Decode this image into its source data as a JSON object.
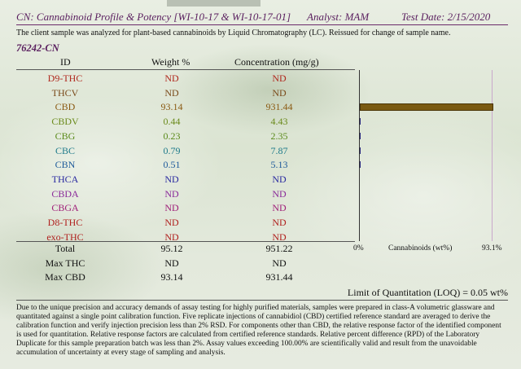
{
  "header": {
    "title": "CN: Cannabinoid Profile & Potency [WI-10-17 & WI-10-17-01]",
    "analyst": "Analyst: MAM",
    "test_date": "Test Date: 2/15/2020"
  },
  "note": "The client sample was analyzed for plant-based cannabinoids by Liquid Chromatography (LC).  Reissued for change of sample name.",
  "sample_id": "76242-CN",
  "columns": {
    "id": "ID",
    "weight": "Weight %",
    "conc": "Concentration (mg/g)"
  },
  "rows": [
    {
      "id": "D9-THC",
      "weight": "ND",
      "conc": "ND",
      "color": "#b0281e",
      "pct": 0
    },
    {
      "id": "THCV",
      "weight": "ND",
      "conc": "ND",
      "color": "#7a4a1a",
      "pct": 0
    },
    {
      "id": "CBD",
      "weight": "93.14",
      "conc": "931.44",
      "color": "#8a5a12",
      "pct": 93.14
    },
    {
      "id": "CBDV",
      "weight": "0.44",
      "conc": "4.43",
      "color": "#6a8a1a",
      "pct": 0.44
    },
    {
      "id": "CBG",
      "weight": "0.23",
      "conc": "2.35",
      "color": "#5a8a1a",
      "pct": 0.23
    },
    {
      "id": "CBC",
      "weight": "0.79",
      "conc": "7.87",
      "color": "#1e7a8a",
      "pct": 0.79
    },
    {
      "id": "CBN",
      "weight": "0.51",
      "conc": "5.13",
      "color": "#1e5a9a",
      "pct": 0.51
    },
    {
      "id": "THCA",
      "weight": "ND",
      "conc": "ND",
      "color": "#2a2aa0",
      "pct": 0
    },
    {
      "id": "CBDA",
      "weight": "ND",
      "conc": "ND",
      "color": "#8a2a9a",
      "pct": 0
    },
    {
      "id": "CBGA",
      "weight": "ND",
      "conc": "ND",
      "color": "#a0207a",
      "pct": 0
    },
    {
      "id": "D8-THC",
      "weight": "ND",
      "conc": "ND",
      "color": "#b0201e",
      "pct": 0
    },
    {
      "id": "exo-THC",
      "weight": "ND",
      "conc": "ND",
      "color": "#b0201e",
      "pct": 0
    }
  ],
  "totals": [
    {
      "id": "Total",
      "weight": "95.12",
      "conc": "951.22"
    },
    {
      "id": "Max THC",
      "weight": "ND",
      "conc": "ND"
    },
    {
      "id": "Max CBD",
      "weight": "93.14",
      "conc": "931.44"
    }
  ],
  "chart": {
    "min_label": "0%",
    "max_label": "93.1%",
    "axis_label": "Cannabinoids (wt%)",
    "max_value": 93.1
  },
  "loq": "Limit of Quantitation (LOQ) = 0.05 wt%",
  "description": "Due to the unique precision and accuracy demands of assay testing for highly purified materials, samples were prepared in class-A volumetric glassware and quantitated against a single point calibration function. Five replicate injections of cannabidiol (CBD) certified reference standard are averaged to derive the calibration function and verify injection precision less than 2% RSD. For components other than CBD, the relative response factor of the identified component is used for quantitation. Relative response factors are calculated from certified reference standards. Relative percent difference (RPD) of the Laboratory Duplicate for this sample preparation batch was less than 2%. Assay values exceeding 100.00% are scientifically valid and result from the unavoidable accumulation of uncertainty at every stage of sampling and analysis."
}
